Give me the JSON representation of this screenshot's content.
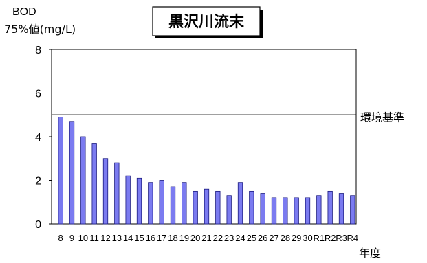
{
  "chart_data": {
    "type": "bar",
    "title": "黒沢川流末",
    "ylabel_line1": "BOD",
    "ylabel_line2": "75%値(mg/L)",
    "xlabel": "年度",
    "ylim": [
      0,
      8
    ],
    "yticks": [
      "0",
      "2",
      "4",
      "6",
      "8"
    ],
    "categories": [
      "8",
      "9",
      "10",
      "11",
      "12",
      "13",
      "14",
      "15",
      "16",
      "17",
      "18",
      "19",
      "20",
      "21",
      "22",
      "23",
      "24",
      "25",
      "26",
      "27",
      "28",
      "29",
      "30",
      "R1",
      "R2",
      "R3",
      "R4"
    ],
    "values": [
      4.9,
      4.7,
      4.0,
      3.7,
      3.0,
      2.8,
      2.2,
      2.1,
      1.9,
      2.0,
      1.7,
      1.9,
      1.5,
      1.6,
      1.5,
      1.3,
      1.9,
      1.5,
      1.4,
      1.2,
      1.2,
      1.2,
      1.2,
      1.3,
      1.5,
      1.4,
      1.3
    ],
    "reference_line": {
      "label": "環境基準",
      "value": 5
    },
    "bar_color": "#7b7bf0",
    "bar_stroke": "#1a1a80",
    "grid": false
  }
}
